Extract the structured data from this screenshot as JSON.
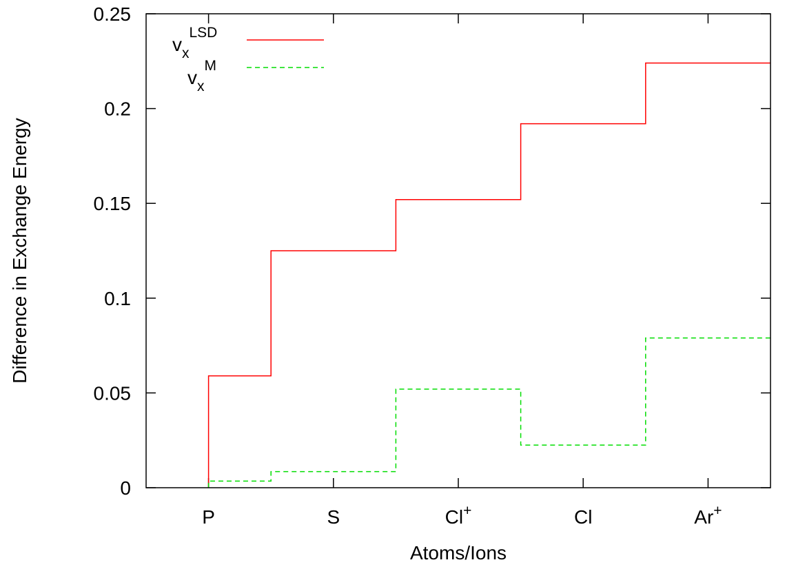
{
  "chart_data": {
    "type": "line",
    "step": true,
    "xlabel": "Atoms/Ions",
    "ylabel": "Difference in Exchange Energy",
    "ylim": [
      0,
      0.25
    ],
    "y_ticks": [
      "0",
      "0.05",
      "0.1",
      "0.15",
      "0.2",
      "0.25"
    ],
    "categories": [
      {
        "base": "P",
        "sup": ""
      },
      {
        "base": "S",
        "sup": ""
      },
      {
        "base": "Cl",
        "sup": "+"
      },
      {
        "base": "Cl",
        "sup": ""
      },
      {
        "base": "Ar",
        "sup": "+"
      }
    ],
    "legend_position": "top-left",
    "series": [
      {
        "name_base": "v",
        "name_sub": "x",
        "name_sup": "LSD",
        "color": "#ff0000",
        "dash": "solid",
        "values": [
          0.059,
          0.125,
          0.152,
          0.192,
          0.224
        ]
      },
      {
        "name_base": "v",
        "name_sub": "x",
        "name_sup": "M",
        "color": "#00dd00",
        "dash": "dashed",
        "values": [
          0.0035,
          0.0085,
          0.052,
          0.0225,
          0.079
        ]
      }
    ]
  }
}
